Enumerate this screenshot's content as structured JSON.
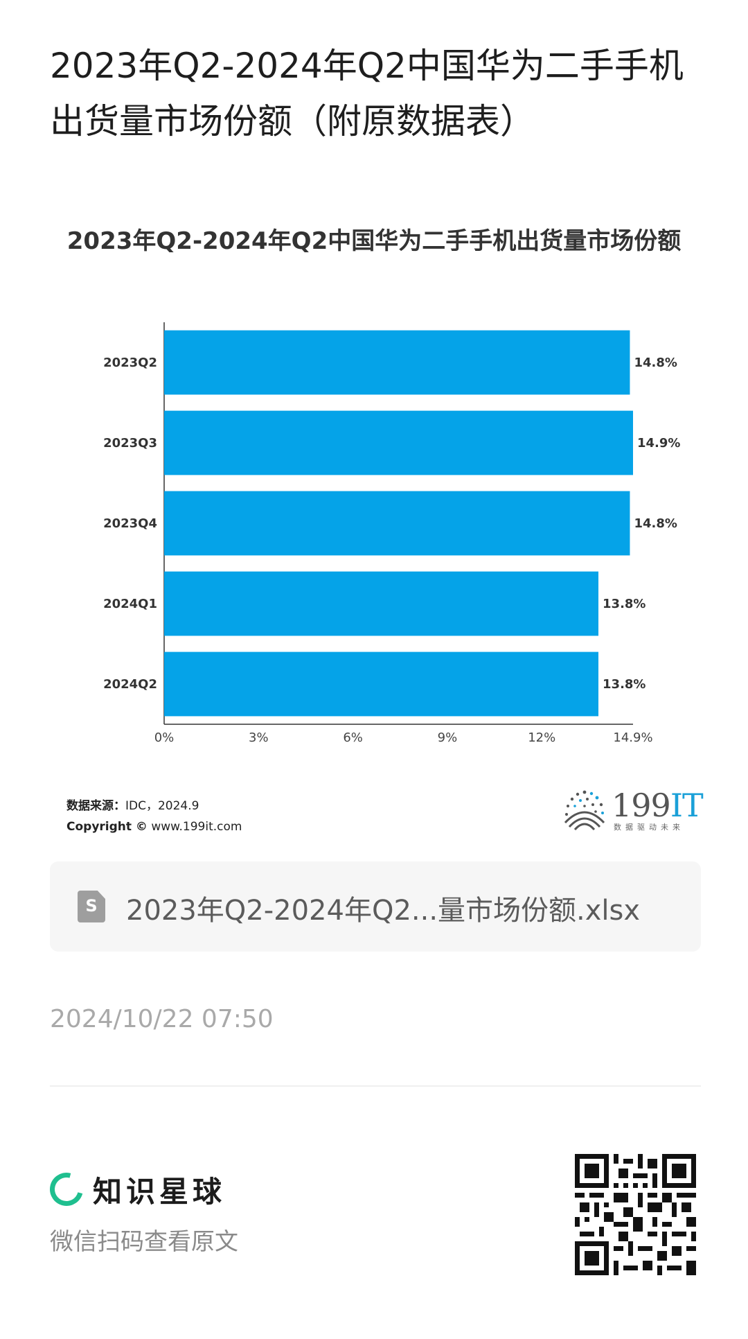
{
  "page": {
    "title": "2023年Q2-2024年Q2中国华为二手手机出货量市场份额（附原数据表）"
  },
  "chart_data": {
    "type": "bar",
    "orientation": "horizontal",
    "title": "2023年Q2-2024年Q2中国华为二手手机出货量市场份额",
    "categories": [
      "2023Q2",
      "2023Q3",
      "2023Q4",
      "2024Q1",
      "2024Q2"
    ],
    "values": [
      14.8,
      14.9,
      14.8,
      13.8,
      13.8
    ],
    "value_labels": [
      "14.8%",
      "14.9%",
      "14.8%",
      "13.8%",
      "13.8%"
    ],
    "x_ticks": [
      "0%",
      "3%",
      "6%",
      "9%",
      "12%",
      "14.9%"
    ],
    "x_tick_values": [
      0,
      3,
      6,
      9,
      12,
      14.9
    ],
    "xlim": [
      0,
      14.9
    ],
    "bar_color": "#05a3e8",
    "grid": false
  },
  "source": {
    "label": "数据来源：",
    "value": "IDC，2024.9",
    "copyright_label": "Copyright ©",
    "copyright_site": "www.199it.com"
  },
  "logo": {
    "text_main": "199",
    "text_accent": "IT",
    "subtitle": "数据驱动未来"
  },
  "file": {
    "icon": "spreadsheet-file-icon",
    "icon_letter": "S",
    "name": "2023年Q2-2024年Q2...量市场份额.xlsx"
  },
  "timestamp": "2024/10/22 07:50",
  "footer": {
    "brand_icon": "zsxq-ring-icon",
    "brand_name": "知识星球",
    "scan_text": "微信扫码查看原文",
    "qr_icon": "qr-code-icon",
    "accent_color": "#1fbf8f"
  }
}
